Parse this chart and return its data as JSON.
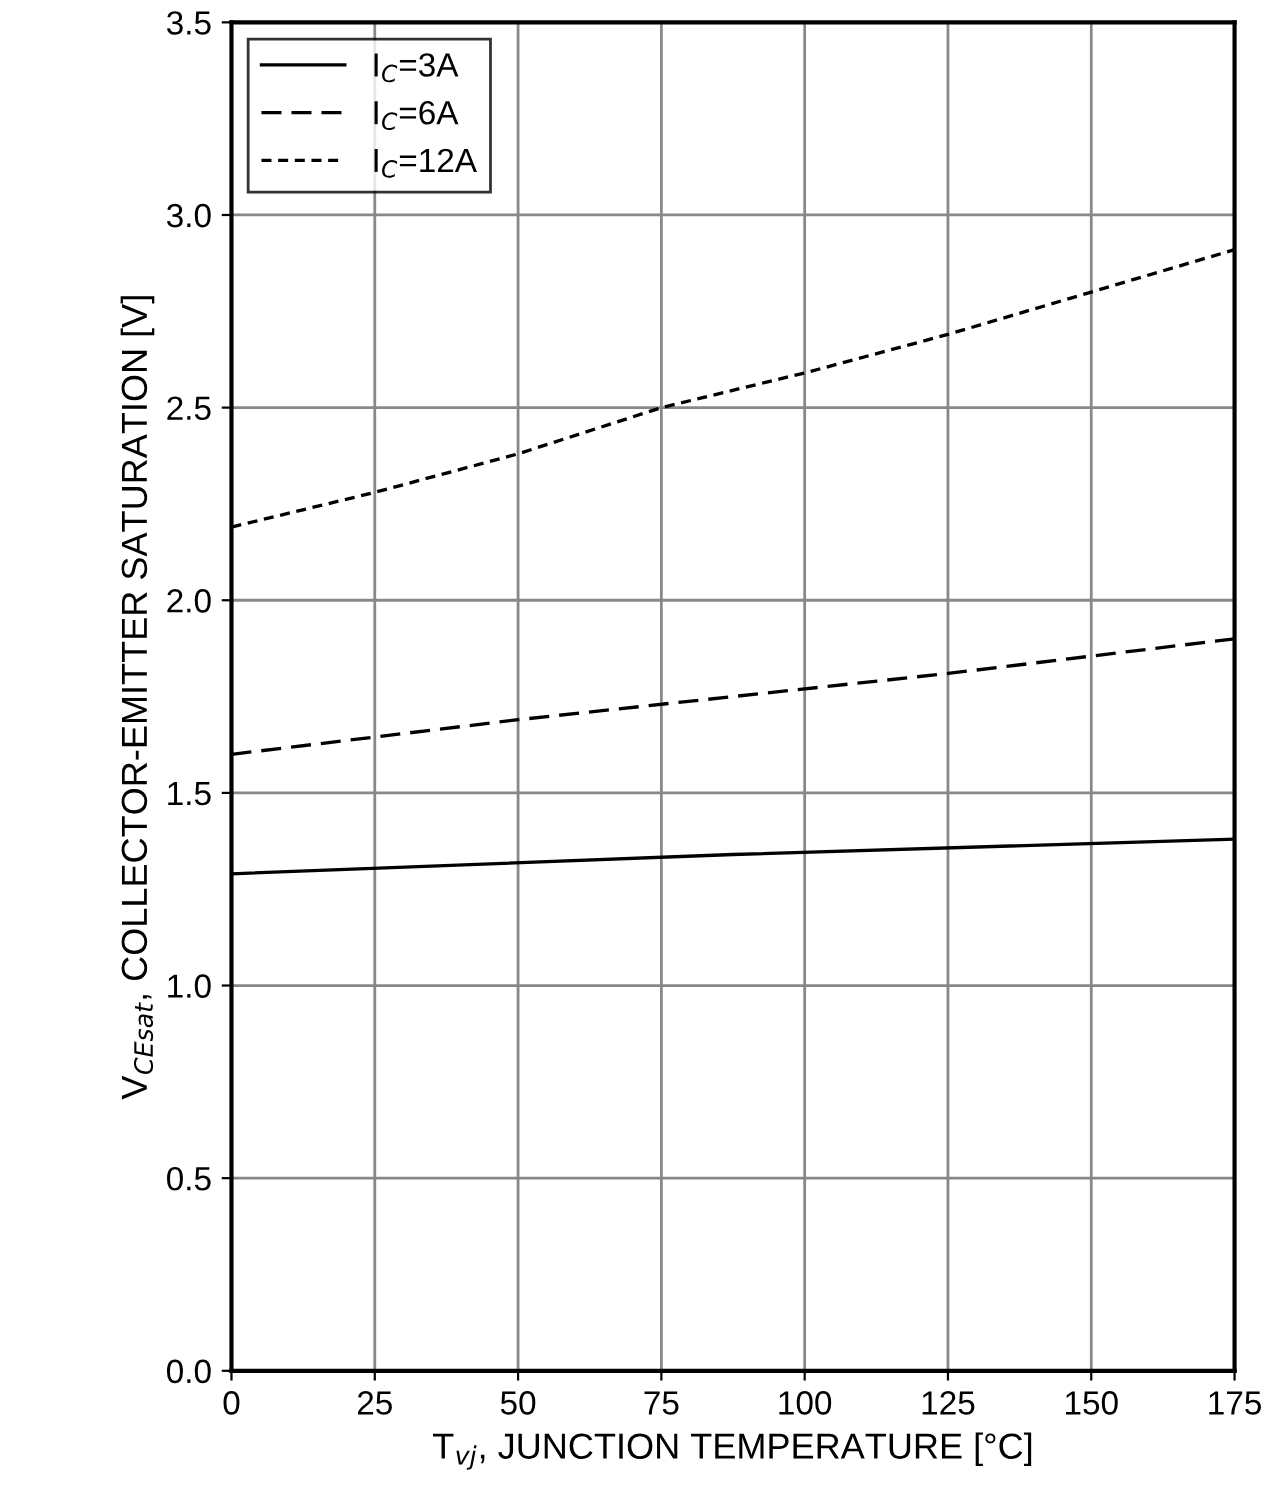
{
  "chart_data": {
    "type": "line",
    "xlabel": "T$_{vj}$, JUNCTION TEMPERATURE [°C]",
    "ylabel": "V$_{CEsat}$, COLLECTOR-EMITTER SATURATION [V]",
    "xlim": [
      0,
      175
    ],
    "xticks": [
      0,
      25,
      50,
      75,
      100,
      125,
      150,
      175
    ],
    "ylim": [
      0.0,
      3.5
    ],
    "yticks": [
      {
        "value": 0,
        "label": "0.0"
      },
      {
        "value": 0.5,
        "label": "0.5"
      },
      {
        "value": 1,
        "label": "1.0"
      },
      {
        "value": 1.5,
        "label": "1.5"
      },
      {
        "value": 2,
        "label": "2.0"
      },
      {
        "value": 2.5,
        "label": "2.5"
      },
      {
        "value": 3,
        "label": "3.0"
      },
      {
        "value": 3.5,
        "label": "3.5"
      }
    ],
    "grid": true,
    "legend": "top left",
    "series": [
      {
        "name": "I$_{C}$=3A",
        "color": "#000000",
        "line_style": "solid",
        "x": [
          0,
          87.5,
          175
        ],
        "values": [
          1.29,
          1.34,
          1.38
        ]
      },
      {
        "name": "I$_{C}$=6A",
        "color": "#000000",
        "line_style": "dashed",
        "x": [
          0,
          50,
          87.5,
          125,
          175
        ],
        "values": [
          1.6,
          1.69,
          1.75,
          1.81,
          1.9
        ]
      },
      {
        "name": "I$_{C}$=12A",
        "color": "#000000",
        "line_style": "dotted",
        "x": [
          0,
          25,
          50,
          75,
          100,
          125,
          150,
          175
        ],
        "values": [
          2.19,
          2.28,
          2.38,
          2.5,
          2.59,
          2.69,
          2.8,
          2.91
        ]
      }
    ]
  }
}
